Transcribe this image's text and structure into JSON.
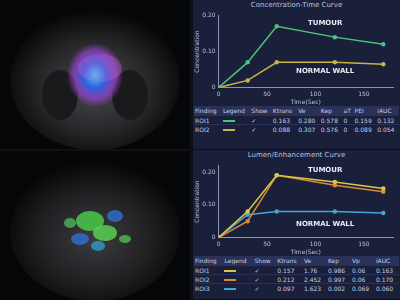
{
  "chart_data": [
    {
      "type": "line",
      "title": "Concentration-Time Curve",
      "x_label": "Time(Sec)",
      "y_label": "Concentration",
      "x": [
        0,
        30,
        60,
        120,
        170
      ],
      "series": [
        {
          "name": "ROI1",
          "color": "#4cc47a",
          "values": [
            0,
            0.07,
            0.17,
            0.14,
            0.12
          ]
        },
        {
          "name": "ROI2",
          "color": "#c9b24a",
          "values": [
            0,
            0.02,
            0.07,
            0.07,
            0.065
          ]
        }
      ],
      "xlim": [
        0,
        180
      ],
      "xticks": [
        0,
        50,
        100,
        150
      ],
      "ylim": [
        0,
        0.2
      ],
      "yticks": [
        0,
        {
          "value": 0.1,
          "label": "0.10"
        },
        {
          "value": 0.2,
          "label": "0.20"
        }
      ],
      "grid": false,
      "annotations": [
        {
          "text": "TUMOUR",
          "x": 110,
          "y": 0.18
        },
        {
          "text": "NORMAL WALL",
          "x": 110,
          "y": 0.045
        }
      ]
    },
    {
      "type": "line",
      "title": "Lumen/Enhancement Curve",
      "x_label": "Time(Sec)",
      "y_label": "Concentration",
      "x": [
        0,
        30,
        60,
        120,
        170
      ],
      "series": [
        {
          "name": "ROI1",
          "color": "#d8c84a",
          "values": [
            0,
            0.08,
            0.19,
            0.17,
            0.15
          ]
        },
        {
          "name": "ROI2",
          "color": "#d88a3a",
          "values": [
            0,
            0.05,
            0.19,
            0.16,
            0.14
          ]
        },
        {
          "name": "ROI3",
          "color": "#3fa7d8",
          "values": [
            0,
            0.07,
            0.08,
            0.08,
            0.075
          ]
        }
      ],
      "xlim": [
        0,
        180
      ],
      "xticks": [
        0,
        50,
        100,
        150
      ],
      "ylim": [
        0,
        0.22
      ],
      "yticks": [
        0,
        {
          "value": 0.1,
          "label": "0.10"
        },
        {
          "value": 0.2,
          "label": "0.20"
        }
      ],
      "grid": false,
      "annotations": [
        {
          "text": "TUMOUR",
          "x": 110,
          "y": 0.205
        },
        {
          "text": "NORMAL WALL",
          "x": 110,
          "y": 0.04
        }
      ]
    }
  ],
  "tables": [
    {
      "header": [
        "Finding",
        "Legend",
        "Show",
        "Ktrans",
        "Ve",
        "Kep",
        "aT",
        "PEI",
        "iAUC"
      ],
      "rows": [
        {
          "finding": "ROI1",
          "show": "✓",
          "values": [
            "0.163",
            "0.280",
            "0.578",
            "0",
            "0.159",
            "0.132"
          ]
        },
        {
          "finding": "ROI2",
          "show": "✓",
          "values": [
            "0.088",
            "0.307",
            "0.576",
            "0",
            "0.089",
            "0.054"
          ]
        }
      ]
    },
    {
      "header": [
        "Finding",
        "Legend",
        "Show",
        "Ktrans",
        "Ve",
        "Kep",
        "Vp",
        "iAUC"
      ],
      "rows": [
        {
          "finding": "ROI1",
          "show": "✓",
          "values": [
            "0.157",
            "1.76",
            "0.986",
            "0.06",
            "0.163"
          ]
        },
        {
          "finding": "ROI2",
          "show": "✓",
          "values": [
            "0.212",
            "2.452",
            "0.997",
            "0.06",
            "0.170"
          ]
        },
        {
          "finding": "ROI3",
          "show": "✓",
          "values": [
            "0.097",
            "1.623",
            "0.002",
            "0.069",
            "0.060"
          ]
        }
      ]
    }
  ]
}
